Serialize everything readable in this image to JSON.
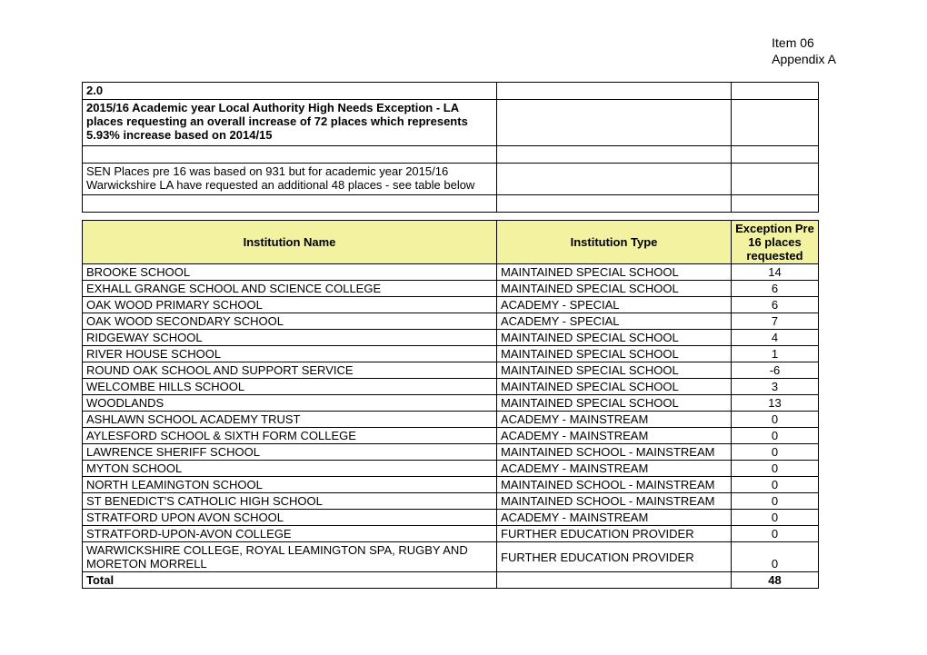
{
  "header": {
    "line1": "Item 06",
    "line2": "Appendix A"
  },
  "section": {
    "number": "2.0",
    "title": "2015/16 Academic year Local Authority High Needs Exception - LA places requesting an overall increase of 72 places which represents 5.93% increase based on 2014/15",
    "subtext": "SEN Places pre 16 was based on 931 but for academic year 2015/16 Warwickshire LA have requested an additional 48 places - see table below"
  },
  "table": {
    "header_bg": "#f2f2a0",
    "columns": {
      "name": "Institution Name",
      "type": "Institution Type",
      "places": "Exception Pre 16 places requested"
    },
    "rows": [
      {
        "name": "BROOKE SCHOOL",
        "type": "MAINTAINED SPECIAL SCHOOL",
        "places": "14"
      },
      {
        "name": "EXHALL GRANGE SCHOOL AND SCIENCE COLLEGE",
        "type": "MAINTAINED SPECIAL SCHOOL",
        "places": "6"
      },
      {
        "name": "OAK WOOD PRIMARY SCHOOL",
        "type": "ACADEMY - SPECIAL",
        "places": "6"
      },
      {
        "name": "OAK WOOD SECONDARY SCHOOL",
        "type": "ACADEMY - SPECIAL",
        "places": "7"
      },
      {
        "name": "RIDGEWAY SCHOOL",
        "type": "MAINTAINED SPECIAL SCHOOL",
        "places": "4"
      },
      {
        "name": "RIVER HOUSE SCHOOL",
        "type": "MAINTAINED SPECIAL SCHOOL",
        "places": "1"
      },
      {
        "name": "ROUND OAK SCHOOL AND SUPPORT SERVICE",
        "type": "MAINTAINED SPECIAL SCHOOL",
        "places": "-6"
      },
      {
        "name": "WELCOMBE HILLS SCHOOL",
        "type": "MAINTAINED SPECIAL SCHOOL",
        "places": "3"
      },
      {
        "name": "WOODLANDS",
        "type": "MAINTAINED SPECIAL SCHOOL",
        "places": "13"
      },
      {
        "name": "ASHLAWN SCHOOL ACADEMY TRUST",
        "type": "ACADEMY - MAINSTREAM",
        "places": "0"
      },
      {
        "name": "AYLESFORD SCHOOL & SIXTH FORM COLLEGE",
        "type": "ACADEMY - MAINSTREAM",
        "places": "0"
      },
      {
        "name": "LAWRENCE SHERIFF SCHOOL",
        "type": "MAINTAINED SCHOOL - MAINSTREAM",
        "places": "0"
      },
      {
        "name": "MYTON SCHOOL",
        "type": "ACADEMY - MAINSTREAM",
        "places": "0"
      },
      {
        "name": "NORTH LEAMINGTON SCHOOL",
        "type": "MAINTAINED SCHOOL - MAINSTREAM",
        "places": "0"
      },
      {
        "name": "ST BENEDICT'S CATHOLIC HIGH SCHOOL",
        "type": "MAINTAINED SCHOOL - MAINSTREAM",
        "places": "0"
      },
      {
        "name": "STRATFORD UPON AVON SCHOOL",
        "type": "ACADEMY - MAINSTREAM",
        "places": "0"
      },
      {
        "name": "STRATFORD-UPON-AVON COLLEGE",
        "type": "FURTHER EDUCATION PROVIDER",
        "places": "0"
      },
      {
        "name": "WARWICKSHIRE COLLEGE, ROYAL LEAMINGTON SPA, RUGBY AND MORETON MORRELL",
        "type": "FURTHER EDUCATION PROVIDER",
        "places": "0"
      }
    ],
    "total_label": "Total",
    "total_value": "48"
  }
}
